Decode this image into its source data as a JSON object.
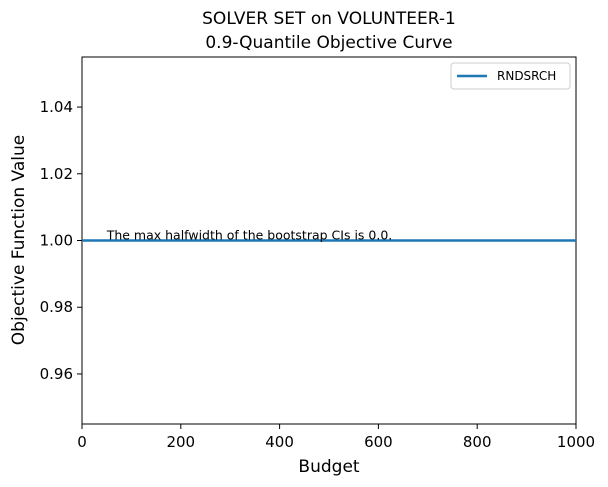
{
  "chart_data": {
    "type": "line",
    "title": "SOLVER SET on VOLUNTEER-1",
    "subtitle": "0.9-Quantile Objective Curve",
    "xlabel": "Budget",
    "ylabel": "Objective Function Value",
    "xlim": [
      0,
      1000
    ],
    "ylim": [
      0.945,
      1.055
    ],
    "xticks": [
      0,
      200,
      400,
      600,
      800,
      1000
    ],
    "xtick_labels": [
      "0",
      "200",
      "400",
      "600",
      "800",
      "1000"
    ],
    "yticks": [
      0.96,
      0.98,
      1.0,
      1.02,
      1.04
    ],
    "ytick_labels": [
      "0.96",
      "0.98",
      "1.00",
      "1.02",
      "1.04"
    ],
    "grid": false,
    "legend_position": "top-right",
    "series": [
      {
        "name": "RNDSRCH",
        "color": "#1f77b4",
        "x": [
          0,
          1000
        ],
        "y": [
          1.0,
          1.0
        ]
      }
    ],
    "annotation": {
      "text": "The max halfwidth of the bootstrap CIs is 0.0.",
      "x": 50,
      "y": 1.0
    }
  }
}
